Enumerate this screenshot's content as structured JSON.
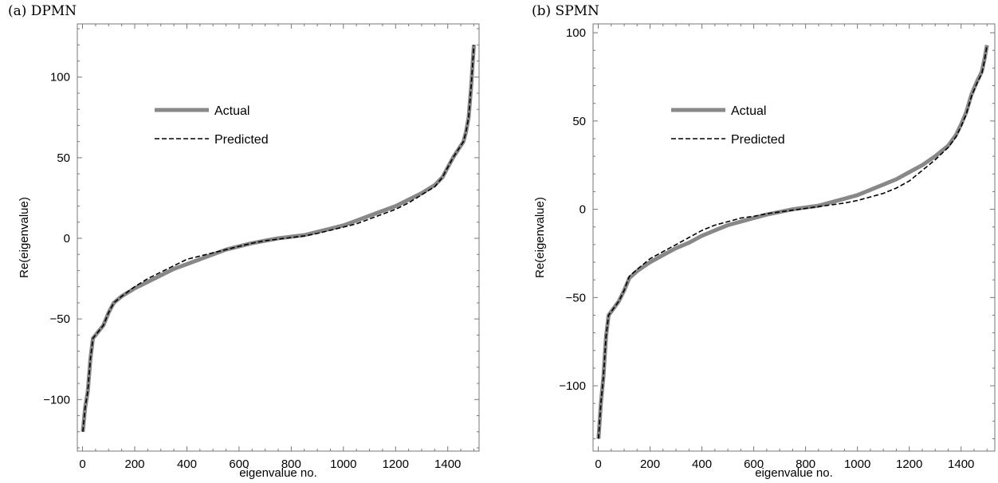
{
  "chart_data": [
    {
      "type": "line",
      "panel_label": "(a) DPMN",
      "xlabel": "eigenvalue no.",
      "ylabel": "Re(eigenvalue)",
      "xlim": [
        -20,
        1520
      ],
      "ylim": [
        -132,
        133
      ],
      "xticks": [
        0,
        200,
        400,
        600,
        800,
        1000,
        1200,
        1400
      ],
      "xtick_labels": [
        "0",
        "200",
        "400",
        "600",
        "800",
        "1000",
        "1200",
        "1400"
      ],
      "yticks": [
        -100,
        -50,
        0,
        50,
        100
      ],
      "ytick_labels": [
        "−100",
        "−50",
        "0",
        "50",
        "100"
      ],
      "grid": false,
      "legend_position": "upper-left-center",
      "series": [
        {
          "name": "Actual",
          "style": "solid",
          "color": "#888888",
          "x": [
            1,
            10,
            20,
            30,
            40,
            60,
            80,
            100,
            120,
            150,
            200,
            250,
            300,
            350,
            400,
            450,
            500,
            550,
            600,
            650,
            700,
            750,
            800,
            850,
            900,
            950,
            1000,
            1050,
            1100,
            1150,
            1200,
            1250,
            1300,
            1350,
            1380,
            1400,
            1420,
            1440,
            1460,
            1470,
            1480,
            1490,
            1500
          ],
          "y": [
            -120,
            -105,
            -95,
            -75,
            -62,
            -58,
            -54,
            -46,
            -40,
            -36,
            -31,
            -27,
            -23,
            -19,
            -16,
            -13,
            -10,
            -7,
            -5,
            -3,
            -1.5,
            0,
            1,
            2,
            4,
            6,
            8,
            11,
            14,
            17,
            20,
            24,
            28,
            33,
            38,
            44,
            50,
            55,
            60,
            66,
            75,
            95,
            120
          ]
        },
        {
          "name": "Predicted",
          "style": "dashed",
          "color": "#000000",
          "x": [
            1,
            10,
            20,
            30,
            40,
            60,
            80,
            100,
            120,
            150,
            200,
            250,
            300,
            350,
            400,
            450,
            500,
            550,
            600,
            650,
            700,
            750,
            800,
            850,
            900,
            950,
            1000,
            1050,
            1100,
            1150,
            1200,
            1250,
            1300,
            1350,
            1380,
            1400,
            1420,
            1440,
            1460,
            1470,
            1480,
            1490,
            1500
          ],
          "y": [
            -120,
            -105,
            -95,
            -75,
            -62,
            -58,
            -54,
            -46,
            -40,
            -36,
            -30,
            -25,
            -21,
            -17,
            -13,
            -11,
            -9,
            -7,
            -5,
            -3,
            -1.5,
            -0.5,
            0.5,
            1.5,
            3,
            5,
            7,
            9,
            12,
            15,
            18,
            22,
            27,
            32,
            38,
            44,
            50,
            55,
            60,
            66,
            75,
            95,
            120
          ]
        }
      ]
    },
    {
      "type": "line",
      "panel_label": "(b) SPMN",
      "xlabel": "eigenvalue no.",
      "ylabel": "Re(eigenvalue)",
      "xlim": [
        -20,
        1530
      ],
      "ylim": [
        -137,
        105
      ],
      "xticks": [
        0,
        200,
        400,
        600,
        800,
        1000,
        1200,
        1400
      ],
      "xtick_labels": [
        "0",
        "200",
        "400",
        "600",
        "800",
        "1000",
        "1200",
        "1400"
      ],
      "yticks": [
        -100,
        -50,
        0,
        50,
        100
      ],
      "ytick_labels": [
        "−100",
        "−50",
        "0",
        "50",
        "100"
      ],
      "grid": false,
      "legend_position": "upper-left-center",
      "series": [
        {
          "name": "Actual",
          "style": "solid",
          "color": "#888888",
          "x": [
            1,
            10,
            20,
            30,
            40,
            60,
            80,
            100,
            120,
            150,
            200,
            250,
            300,
            350,
            400,
            450,
            500,
            550,
            600,
            650,
            700,
            750,
            800,
            850,
            900,
            950,
            1000,
            1050,
            1100,
            1150,
            1200,
            1250,
            1300,
            1350,
            1380,
            1400,
            1420,
            1440,
            1460,
            1480,
            1490,
            1500
          ],
          "y": [
            -130,
            -110,
            -95,
            -72,
            -60,
            -56,
            -52,
            -46,
            -39,
            -35,
            -30,
            -26,
            -22,
            -19,
            -15,
            -12,
            -9,
            -7,
            -5,
            -3,
            -1.5,
            0,
            1,
            2,
            4,
            6,
            8,
            11,
            14,
            17,
            21,
            25,
            30,
            36,
            42,
            48,
            55,
            65,
            72,
            78,
            85,
            93
          ]
        },
        {
          "name": "Predicted",
          "style": "dashed",
          "color": "#000000",
          "x": [
            1,
            10,
            20,
            30,
            40,
            60,
            80,
            100,
            120,
            150,
            200,
            250,
            300,
            350,
            400,
            450,
            500,
            550,
            600,
            650,
            700,
            750,
            800,
            850,
            900,
            950,
            1000,
            1050,
            1100,
            1150,
            1200,
            1250,
            1300,
            1350,
            1380,
            1400,
            1420,
            1440,
            1460,
            1480,
            1490,
            1500
          ],
          "y": [
            -130,
            -110,
            -95,
            -72,
            -60,
            -56,
            -52,
            -46,
            -38,
            -34,
            -28,
            -24,
            -20,
            -16,
            -12,
            -9,
            -7,
            -5,
            -4,
            -2.5,
            -1.5,
            -0.5,
            0.5,
            1.5,
            2.5,
            3.5,
            5,
            7,
            9,
            12,
            16,
            22,
            28,
            35,
            41,
            47,
            54,
            64,
            71,
            77,
            84,
            93
          ]
        }
      ]
    }
  ]
}
